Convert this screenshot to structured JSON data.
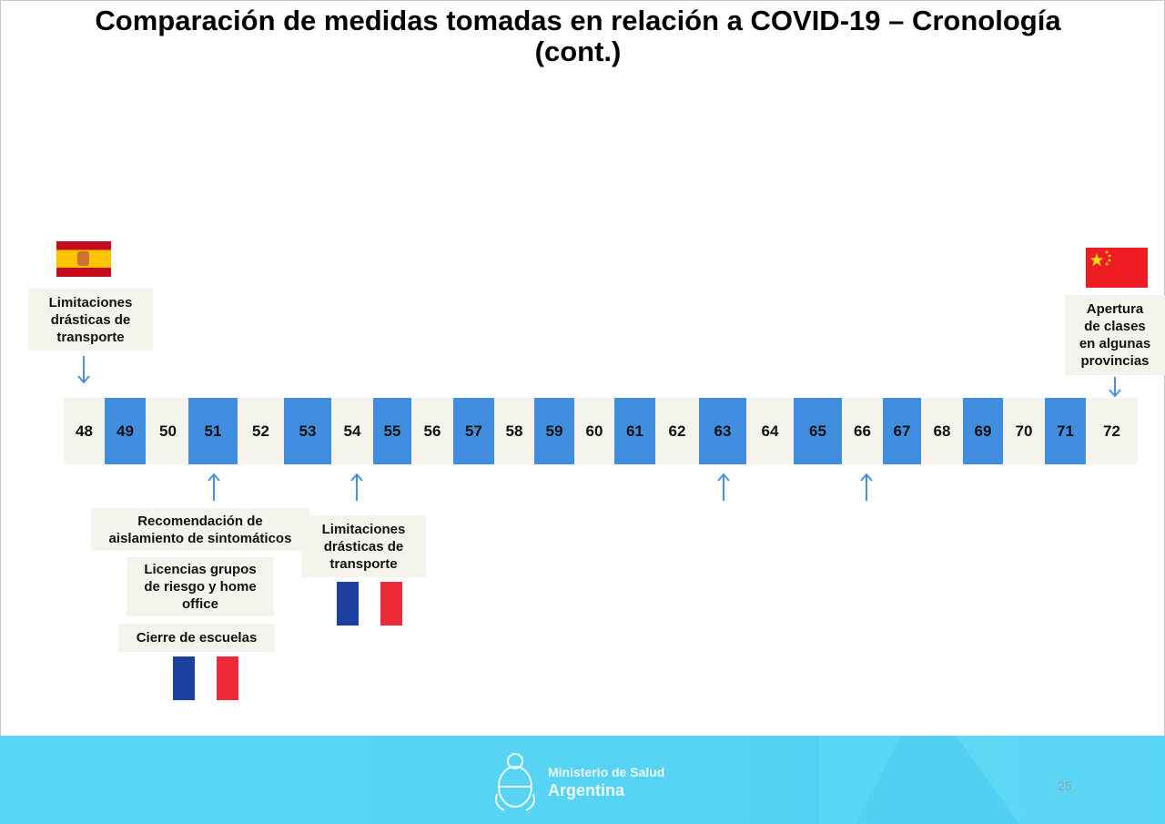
{
  "title_line1": "Comparación de medidas tomadas en relación a COVID-19 – Cronología",
  "title_line2": "(cont.)",
  "timeline": {
    "cells": [
      {
        "day": "48",
        "highlight": false
      },
      {
        "day": "49",
        "highlight": true
      },
      {
        "day": "50",
        "highlight": false
      },
      {
        "day": "51",
        "highlight": true
      },
      {
        "day": "52",
        "highlight": false
      },
      {
        "day": "53",
        "highlight": true
      },
      {
        "day": "54",
        "highlight": false
      },
      {
        "day": "55",
        "highlight": true
      },
      {
        "day": "56",
        "highlight": false
      },
      {
        "day": "57",
        "highlight": true
      },
      {
        "day": "58",
        "highlight": false
      },
      {
        "day": "59",
        "highlight": true
      },
      {
        "day": "60",
        "highlight": false
      },
      {
        "day": "61",
        "highlight": true
      },
      {
        "day": "62",
        "highlight": false
      },
      {
        "day": "63",
        "highlight": true
      },
      {
        "day": "64",
        "highlight": false
      },
      {
        "day": "65",
        "highlight": true
      },
      {
        "day": "66",
        "highlight": false
      },
      {
        "day": "67",
        "highlight": true
      },
      {
        "day": "68",
        "highlight": false
      },
      {
        "day": "69",
        "highlight": true
      },
      {
        "day": "70",
        "highlight": false
      },
      {
        "day": "71",
        "highlight": true
      },
      {
        "day": "72",
        "highlight": false
      }
    ],
    "highlight_color": "#3f8ee0",
    "band_color": "#f6f3ec"
  },
  "events": {
    "spain": {
      "country_flag": "spain-flag-icon",
      "day": "48",
      "label_lines": [
        "Limitaciones",
        "drásticas de",
        "transporte"
      ]
    },
    "day51": {
      "day": "51",
      "measures": [
        {
          "lines": [
            "Recomendación de",
            "aislamiento de sintomáticos"
          ]
        },
        {
          "lines": [
            "Licencias grupos",
            "de riesgo y home",
            "office"
          ]
        },
        {
          "lines": [
            "Cierre de escuelas"
          ]
        }
      ],
      "country_flag": "france-flag-icon"
    },
    "day54": {
      "day": "54",
      "label_lines": [
        "Limitaciones",
        "drásticas de",
        "transporte"
      ],
      "country_flag": "france-flag-icon"
    },
    "day63": {
      "day": "63"
    },
    "day66": {
      "day": "66"
    },
    "china": {
      "country_flag": "china-flag-icon",
      "day": "72",
      "label_lines": [
        "Apertura",
        "de clases",
        "en algunas",
        "provincias"
      ]
    }
  },
  "footer": {
    "ministry_line1": "Ministerio de Salud",
    "ministry_line2": "Argentina",
    "page_number": "25",
    "color": "#5bd6f5"
  }
}
